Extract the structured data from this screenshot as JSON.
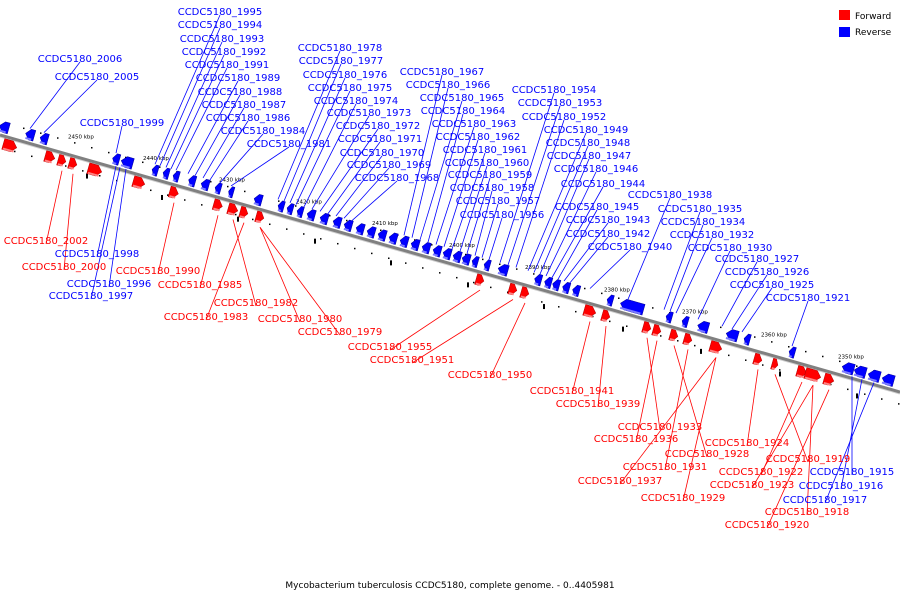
{
  "caption": "Mycobacterium tuberculosis CCDC5180, complete genome. - 0..4405981",
  "legend": [
    {
      "label": "Forward",
      "color": "#ff0000"
    },
    {
      "label": "Reverse",
      "color": "#0000ff"
    }
  ],
  "colors": {
    "forward": "#ff0000",
    "reverse": "#0000ff",
    "backbone": "#808080"
  },
  "ticks": [
    {
      "label": "2450 kbp"
    },
    {
      "label": "2440 kbp"
    },
    {
      "label": "2430 kbp"
    },
    {
      "label": "2420 kbp"
    },
    {
      "label": "2410 kbp"
    },
    {
      "label": "2400 kbp"
    },
    {
      "label": "2390 kbp"
    },
    {
      "label": "2380 kbp"
    },
    {
      "label": "2370 kbp"
    },
    {
      "label": "2360 kbp"
    },
    {
      "label": "2350 kbp"
    }
  ],
  "reverse_labels": [
    "CCDC5180_2006",
    "CCDC5180_2005",
    "CCDC5180_1999",
    "CCDC5180_1995",
    "CCDC5180_1994",
    "CCDC5180_1993",
    "CCDC5180_1992",
    "CCDC5180_1991",
    "CCDC5180_1989",
    "CCDC5180_1988",
    "CCDC5180_1987",
    "CCDC5180_1986",
    "CCDC5180_1984",
    "CCDC5180_1981",
    "CCDC5180_1978",
    "CCDC5180_1977",
    "CCDC5180_1976",
    "CCDC5180_1975",
    "CCDC5180_1974",
    "CCDC5180_1973",
    "CCDC5180_1972",
    "CCDC5180_1971",
    "CCDC5180_1970",
    "CCDC5180_1969",
    "CCDC5180_1968",
    "CCDC5180_1967",
    "CCDC5180_1966",
    "CCDC5180_1965",
    "CCDC5180_1964",
    "CCDC5180_1963",
    "CCDC5180_1962",
    "CCDC5180_1961",
    "CCDC5180_1960",
    "CCDC5180_1959",
    "CCDC5180_1958",
    "CCDC5180_1957",
    "CCDC5180_1956",
    "CCDC5180_1954",
    "CCDC5180_1953",
    "CCDC5180_1952",
    "CCDC5180_1949",
    "CCDC5180_1948",
    "CCDC5180_1947",
    "CCDC5180_1946",
    "CCDC5180_1944",
    "CCDC5180_1945",
    "CCDC5180_1943",
    "CCDC5180_1942",
    "CCDC5180_1940",
    "CCDC5180_1938",
    "CCDC5180_1935",
    "CCDC5180_1934",
    "CCDC5180_1932",
    "CCDC5180_1930",
    "CCDC5180_1927",
    "CCDC5180_1926",
    "CCDC5180_1925",
    "CCDC5180_1921",
    "CCDC5180_1998",
    "CCDC5180_1996",
    "CCDC5180_1997",
    "CCDC5180_1915",
    "CCDC5180_1916",
    "CCDC5180_1917"
  ],
  "forward_labels": [
    "CCDC5180_2002",
    "CCDC5180_2000",
    "CCDC5180_1990",
    "CCDC5180_1985",
    "CCDC5180_1982",
    "CCDC5180_1983",
    "CCDC5180_1980",
    "CCDC5180_1979",
    "CCDC5180_1955",
    "CCDC5180_1951",
    "CCDC5180_1950",
    "CCDC5180_1941",
    "CCDC5180_1939",
    "CCDC5180_1933",
    "CCDC5180_1936",
    "CCDC5180_1928",
    "CCDC5180_1931",
    "CCDC5180_1937",
    "CCDC5180_1929",
    "CCDC5180_1924",
    "CCDC5180_1919",
    "CCDC5180_1922",
    "CCDC5180_1923",
    "CCDC5180_1918",
    "CCDC5180_1920"
  ]
}
